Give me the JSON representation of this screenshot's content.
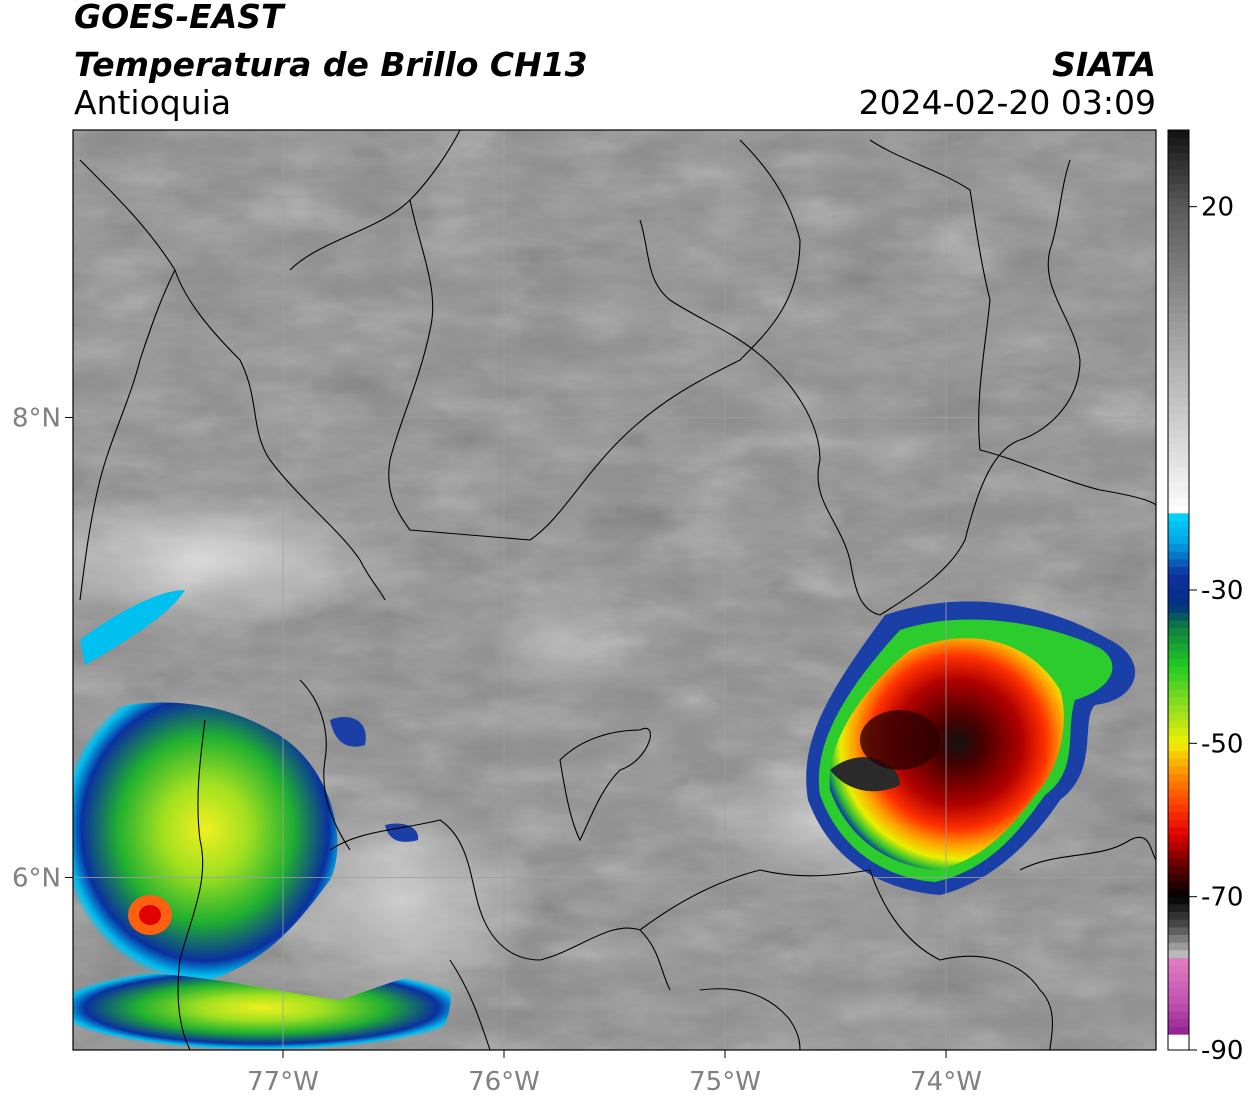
{
  "header": {
    "satellite": "GOES-EAST",
    "product": "Temperatura de Brillo CH13",
    "region": "Antioquia",
    "organization": "SIATA",
    "datetime": "2024-02-20 03:09"
  },
  "map": {
    "lon_ticks": [
      "77°W",
      "76°W",
      "75°W",
      "74°W"
    ],
    "lat_ticks": [
      "8°N",
      "6°N"
    ],
    "extent": {
      "lon_min": -77.95,
      "lon_max": -73.05,
      "lat_min": 5.25,
      "lat_max": 9.25
    },
    "grid": true,
    "storms": [
      {
        "name": "",
        "lon": -73.98,
        "lat": 6.35,
        "min_temp_c": -72
      },
      {
        "name": "",
        "lon": -77.35,
        "lat": 5.9,
        "min_temp_c": -55
      }
    ]
  },
  "colorbar": {
    "ticks": [
      "20",
      "-30",
      "-50",
      "-70",
      "-90"
    ],
    "values": [
      20,
      -30,
      -50,
      -70,
      -90
    ],
    "range": [
      -90,
      30
    ],
    "colors": {
      "warm_top": "#111111",
      "gray_mid": "#9a9a9a",
      "white": "#ffffff",
      "cyan": "#00d8ff",
      "blue": "#1030a0",
      "green": "#22cc22",
      "yellow": "#f0f000",
      "orange": "#ff9000",
      "red": "#e00000",
      "dark_red": "#600000",
      "black": "#000000",
      "pink": "#e080c0",
      "purple": "#902090"
    }
  }
}
